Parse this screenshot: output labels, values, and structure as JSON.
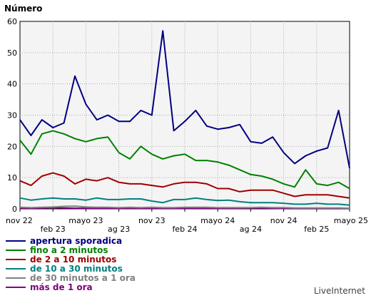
{
  "chart_data": {
    "type": "line",
    "ylabel": "Número",
    "ylim": [
      0,
      60
    ],
    "yticks": [
      0,
      10,
      20,
      30,
      40,
      50,
      60
    ],
    "grid": true,
    "legend_placement": "bottom-left",
    "x_count": 31,
    "x_ticks": [
      {
        "i": 0,
        "label": "nov 22",
        "row": 0
      },
      {
        "i": 3,
        "label": "feb 23",
        "row": 1
      },
      {
        "i": 6,
        "label": "mayo 23",
        "row": 0
      },
      {
        "i": 9,
        "label": "ag 23",
        "row": 1
      },
      {
        "i": 12,
        "label": "nov 23",
        "row": 0
      },
      {
        "i": 15,
        "label": "feb 24",
        "row": 1
      },
      {
        "i": 18,
        "label": "mayo 24",
        "row": 0
      },
      {
        "i": 21,
        "label": "ag 24",
        "row": 1
      },
      {
        "i": 24,
        "label": "nov 24",
        "row": 0
      },
      {
        "i": 27,
        "label": "feb 25",
        "row": 1
      },
      {
        "i": 30,
        "label": "mayo 25",
        "row": 0
      }
    ],
    "series": [
      {
        "name": "apertura sporadica",
        "color": "#000080",
        "values": [
          28.5,
          23.5,
          28.5,
          26,
          27.5,
          42.5,
          33.5,
          28.5,
          30,
          28,
          28,
          31.5,
          30,
          57,
          25,
          28,
          31.5,
          26.5,
          25.5,
          26,
          27,
          21.5,
          21,
          23,
          18,
          14.5,
          17,
          18.5,
          19.5,
          31.5,
          13
        ]
      },
      {
        "name": "fino a 2 minutos",
        "color": "#008000",
        "values": [
          22,
          17.5,
          24,
          25,
          24,
          22.5,
          21.5,
          22.5,
          23,
          18,
          16,
          20,
          17.5,
          16,
          17,
          17.5,
          15.5,
          15.5,
          15,
          14,
          12.5,
          11,
          10.5,
          9.5,
          8,
          7,
          12.5,
          8,
          7.5,
          8.5,
          6.5
        ]
      },
      {
        "name": "de 2 a 10 minutos",
        "color": "#a00000",
        "values": [
          9,
          7.5,
          10.5,
          11.5,
          10.5,
          8,
          9.5,
          9,
          10,
          8.5,
          8,
          8,
          7.5,
          7,
          8,
          8.5,
          8.5,
          8,
          6.5,
          6.5,
          5.5,
          6,
          6,
          6,
          5,
          4,
          4.5,
          4.5,
          4.5,
          4,
          3.5
        ]
      },
      {
        "name": "de 10 a 30 minutos",
        "color": "#008080",
        "values": [
          3.5,
          2.8,
          3.2,
          3.5,
          3.2,
          3.2,
          2.8,
          3.5,
          3,
          3,
          3.2,
          3.2,
          2.5,
          2,
          3,
          3,
          3.5,
          3,
          2.7,
          2.8,
          2.3,
          2,
          2,
          2,
          1.8,
          1.5,
          1.5,
          1.8,
          1.5,
          1.5,
          1.2
        ]
      },
      {
        "name": "de 30 minutos a 1 ora",
        "color": "#808080",
        "values": [
          0.5,
          0.4,
          0.5,
          0.6,
          0.8,
          0.9,
          0.6,
          0.5,
          0.5,
          0.4,
          0.5,
          0.4,
          0.5,
          0.4,
          0.4,
          0.5,
          0.5,
          0.5,
          0.4,
          0.4,
          0.4,
          0.4,
          0.5,
          0.4,
          0.4,
          0.3,
          0.3,
          0.3,
          0.3,
          0.3,
          0.2
        ]
      },
      {
        "name": "más de 1 ora",
        "color": "#800080",
        "values": [
          0.2,
          0.2,
          0.3,
          0.4,
          0.3,
          0.2,
          0.2,
          0.2,
          0.2,
          0.2,
          0.2,
          0.2,
          0.2,
          0.2,
          0.2,
          0.2,
          0.2,
          0.2,
          0.2,
          0.2,
          0.2,
          0.3,
          0.3,
          0.2,
          0.1,
          0.1,
          0.1,
          0.1,
          0.1,
          0.1,
          0.1
        ]
      }
    ]
  },
  "brand": "LiveInternet"
}
